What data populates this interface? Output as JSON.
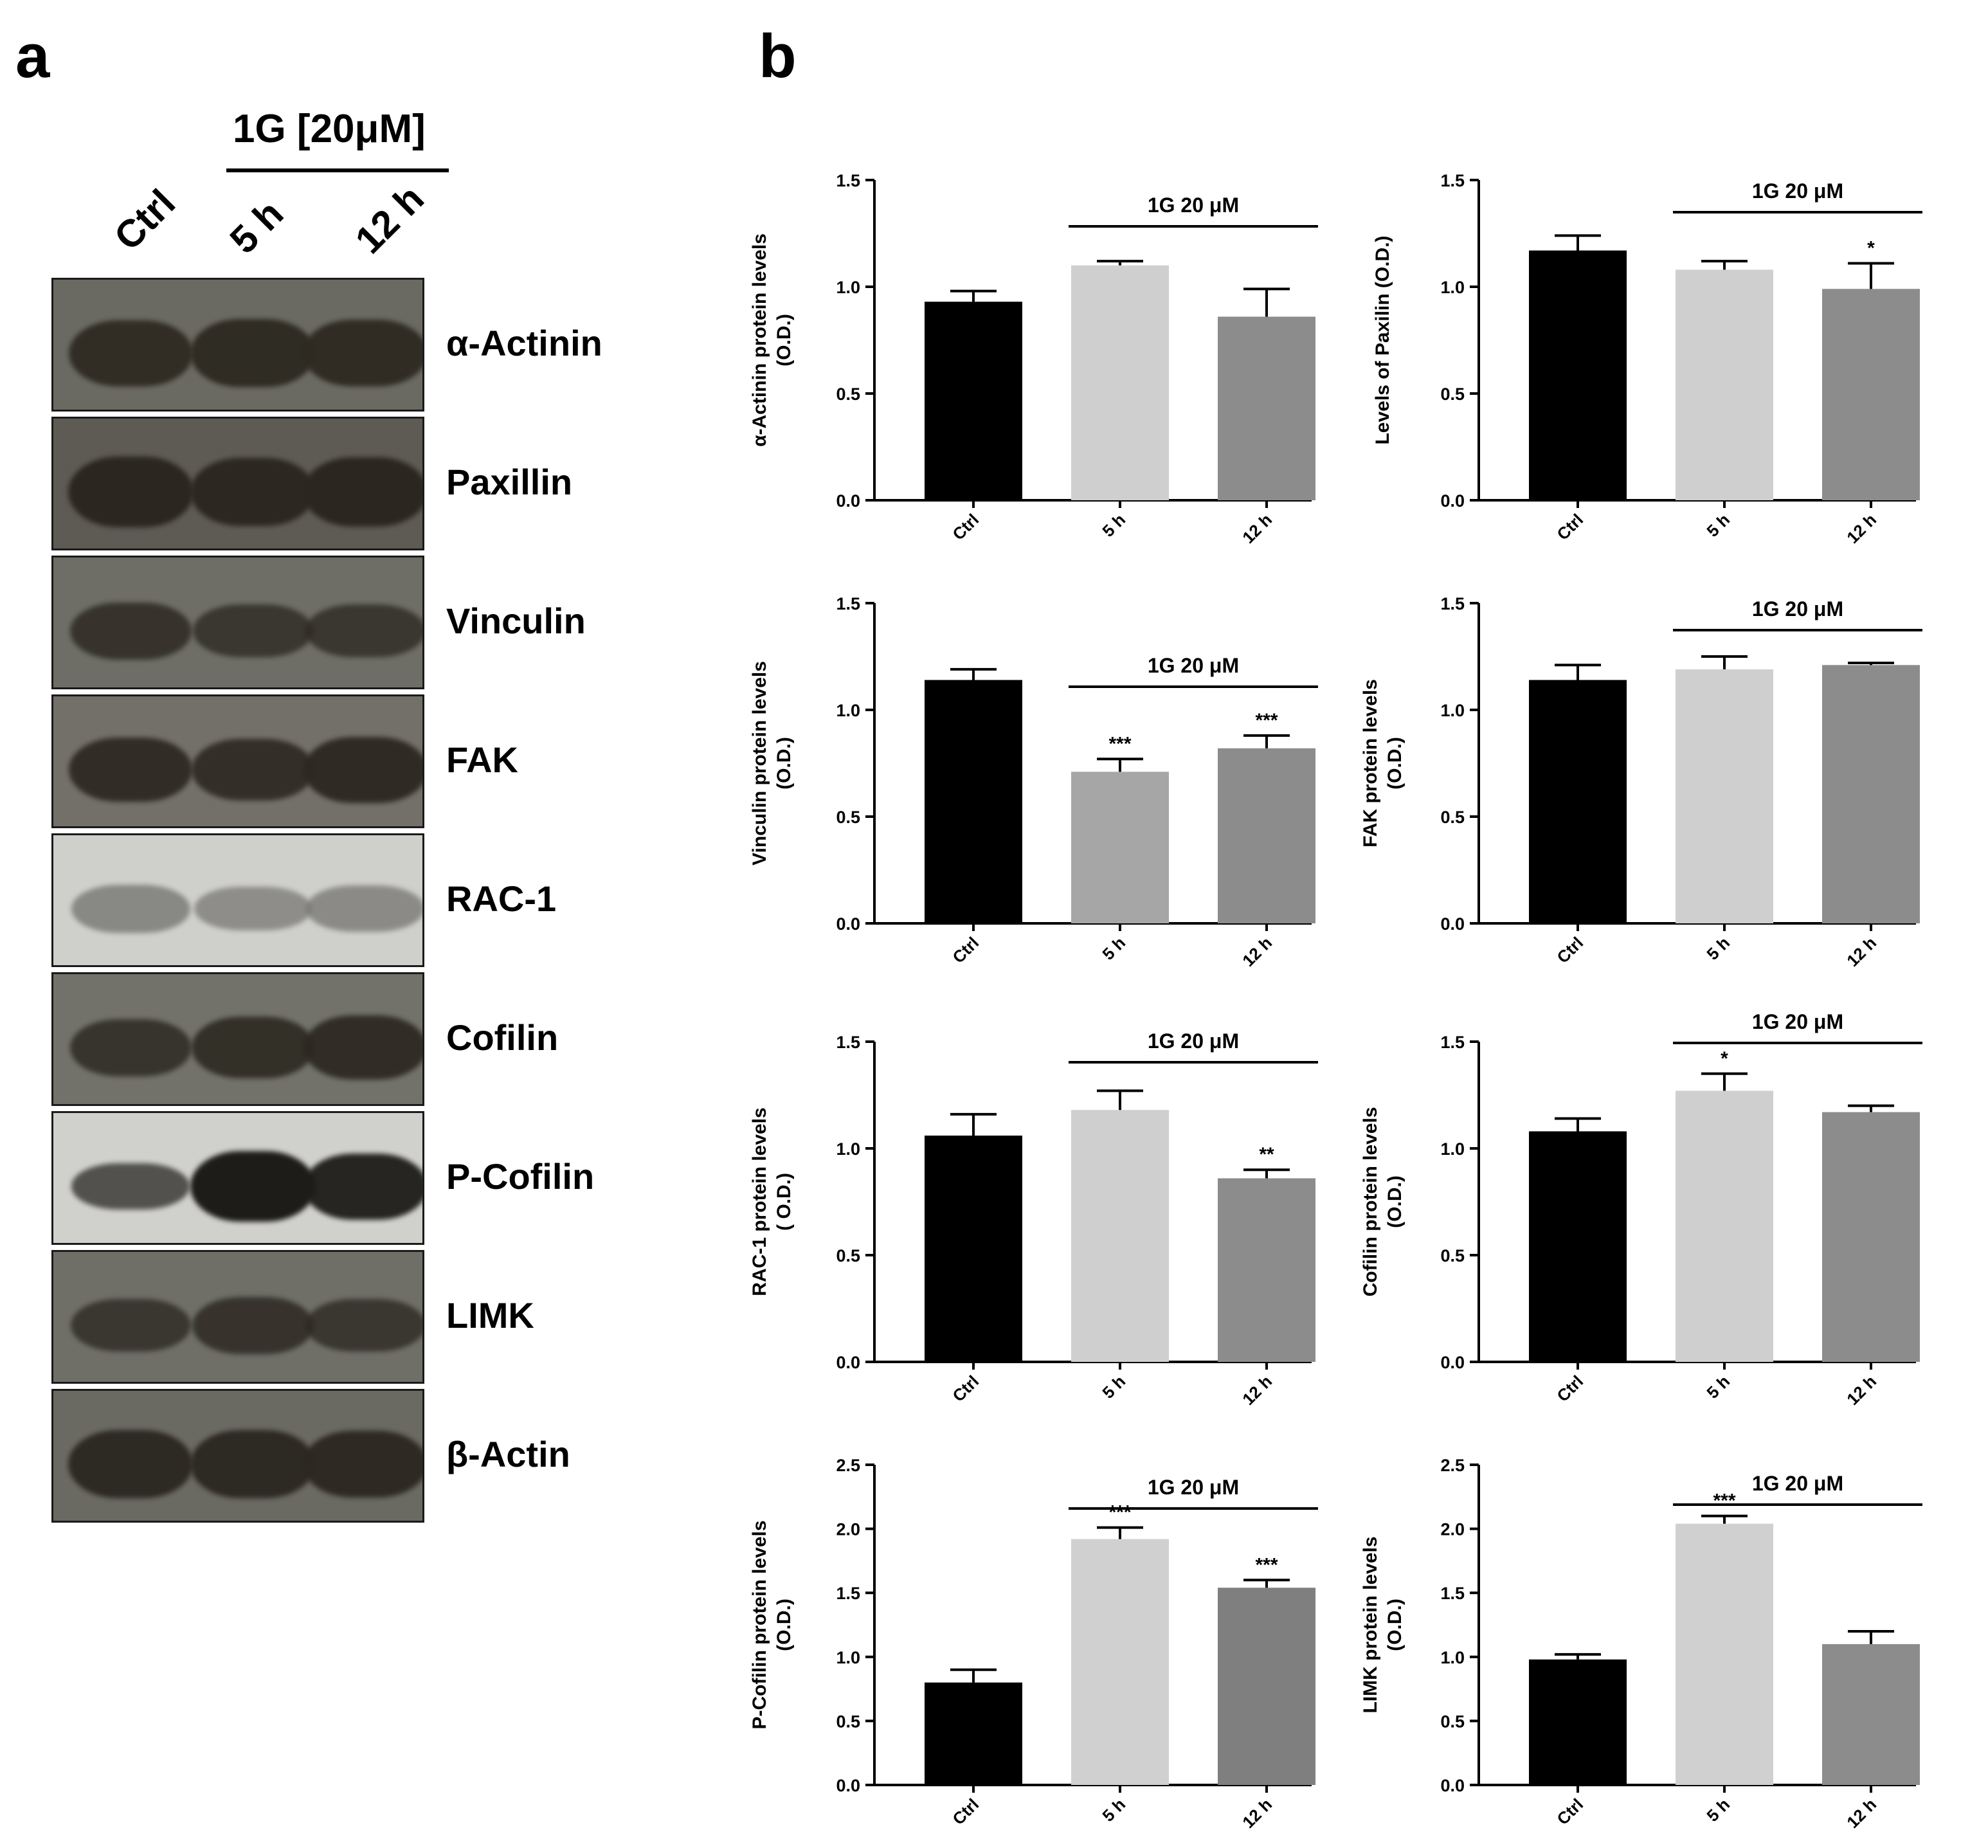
{
  "panels": {
    "a": "a",
    "b": "b"
  },
  "blot": {
    "treatment_header": "1G [20μM]",
    "lanes": [
      "Ctrl",
      "5 h",
      "12 h"
    ],
    "proteins": [
      {
        "name": "α-Actinin",
        "band_intensity": [
          0.9,
          0.95,
          0.92
        ],
        "band_shade": "#2e2a22",
        "background": "#6b6a62"
      },
      {
        "name": "Paxillin",
        "band_intensity": [
          1.0,
          0.95,
          0.98
        ],
        "band_shade": "#2b2720",
        "background": "#5d5b54"
      },
      {
        "name": "Vinculin",
        "band_intensity": [
          0.7,
          0.6,
          0.6
        ],
        "band_shade": "#2c2821",
        "background": "#6e6e66"
      },
      {
        "name": "FAK",
        "band_intensity": [
          0.85,
          0.8,
          0.9
        ],
        "band_shade": "#2c2821",
        "background": "#737069"
      },
      {
        "name": "RAC-1",
        "band_intensity": [
          0.5,
          0.4,
          0.45
        ],
        "band_shade": "#6f6e6a",
        "background": "#cfcfcb"
      },
      {
        "name": "Cofilin",
        "band_intensity": [
          0.7,
          0.8,
          0.85
        ],
        "band_shade": "#2c2821",
        "background": "#72726a"
      },
      {
        "name": "P-Cofilin",
        "band_intensity": [
          0.45,
          1.0,
          0.9
        ],
        "band_shade": "#1e1c18",
        "background": "#d0d0cc"
      },
      {
        "name": "LIMK",
        "band_intensity": [
          0.6,
          0.7,
          0.6
        ],
        "band_shade": "#2c2821",
        "background": "#6f6f68"
      },
      {
        "name": "β-Actin",
        "band_intensity": [
          0.95,
          0.95,
          0.92
        ],
        "band_shade": "#2c2821",
        "background": "#6a6962"
      }
    ]
  },
  "chart_data": [
    {
      "type": "bar",
      "ylabel": [
        "α-Actinin protein levels",
        "(O.D.)"
      ],
      "categories": [
        "Ctrl",
        "5 h",
        "12 h"
      ],
      "values": [
        0.93,
        1.1,
        0.86
      ],
      "errors": [
        0.05,
        0.02,
        0.13
      ],
      "stars": [
        "",
        "",
        ""
      ],
      "ylim": [
        0,
        1.5
      ],
      "yticks": [
        "0.0",
        "0.5",
        "1.0",
        "1.5"
      ],
      "treatment_label": "1G 20 μM",
      "colors": [
        "#000000",
        "#cfcfcf",
        "#8c8c8c"
      ]
    },
    {
      "type": "bar",
      "ylabel": [
        "Levels of Paxilin (O.D.)"
      ],
      "categories": [
        "Ctrl",
        "5 h",
        "12 h"
      ],
      "values": [
        1.17,
        1.08,
        0.99
      ],
      "errors": [
        0.07,
        0.04,
        0.12
      ],
      "stars": [
        "",
        "",
        "*"
      ],
      "ylim": [
        0,
        1.5
      ],
      "yticks": [
        "0.0",
        "0.5",
        "1.0",
        "1.5"
      ],
      "treatment_label": "1G 20 μM",
      "colors": [
        "#000000",
        "#cfcfcf",
        "#8c8c8c"
      ]
    },
    {
      "type": "bar",
      "ylabel": [
        "Vinculin protein levels",
        "(O.D.)"
      ],
      "categories": [
        "Ctrl",
        "5 h",
        "12 h"
      ],
      "values": [
        1.14,
        0.71,
        0.82
      ],
      "errors": [
        0.05,
        0.06,
        0.06
      ],
      "stars": [
        "",
        "***",
        "***"
      ],
      "ylim": [
        0,
        1.5
      ],
      "yticks": [
        "0.0",
        "0.5",
        "1.0",
        "1.5"
      ],
      "treatment_label": "1G 20 μM",
      "colors": [
        "#000000",
        "#a6a6a6",
        "#8c8c8c"
      ]
    },
    {
      "type": "bar",
      "ylabel": [
        "FAK protein levels",
        "(O.D.)"
      ],
      "categories": [
        "Ctrl",
        "5 h",
        "12 h"
      ],
      "values": [
        1.14,
        1.19,
        1.21
      ],
      "errors": [
        0.07,
        0.06,
        0.01
      ],
      "stars": [
        "",
        "",
        ""
      ],
      "ylim": [
        0,
        1.5
      ],
      "yticks": [
        "0.0",
        "0.5",
        "1.0",
        "1.5"
      ],
      "treatment_label": "1G 20 μM",
      "colors": [
        "#000000",
        "#cfcfcf",
        "#8c8c8c"
      ]
    },
    {
      "type": "bar",
      "ylabel": [
        "RAC-1 protein levels",
        "( O.D.)"
      ],
      "categories": [
        "Ctrl",
        "5 h",
        "12 h"
      ],
      "values": [
        1.06,
        1.18,
        0.86
      ],
      "errors": [
        0.1,
        0.09,
        0.04
      ],
      "stars": [
        "",
        "",
        "**"
      ],
      "ylim": [
        0,
        1.5
      ],
      "yticks": [
        "0.0",
        "0.5",
        "1.0",
        "1.5"
      ],
      "treatment_label": "1G 20 μM",
      "colors": [
        "#000000",
        "#cfcfcf",
        "#8c8c8c"
      ]
    },
    {
      "type": "bar",
      "ylabel": [
        "Cofilin protein levels",
        "(O.D.)"
      ],
      "categories": [
        "Ctrl",
        "5 h",
        "12 h"
      ],
      "values": [
        1.08,
        1.27,
        1.17
      ],
      "errors": [
        0.06,
        0.08,
        0.03
      ],
      "stars": [
        "",
        "*",
        ""
      ],
      "ylim": [
        0,
        1.5
      ],
      "yticks": [
        "0.0",
        "0.5",
        "1.0",
        "1.5"
      ],
      "treatment_label": "1G 20 μM",
      "colors": [
        "#000000",
        "#cfcfcf",
        "#8c8c8c"
      ]
    },
    {
      "type": "bar",
      "ylabel": [
        "P-Cofilin protein levels",
        "(O.D.)"
      ],
      "categories": [
        "Ctrl",
        "5 h",
        "12 h"
      ],
      "values": [
        0.8,
        1.92,
        1.54
      ],
      "errors": [
        0.1,
        0.09,
        0.06
      ],
      "stars": [
        "",
        "***",
        "***"
      ],
      "ylim": [
        0,
        2.5
      ],
      "yticks": [
        "0.0",
        "0.5",
        "1.0",
        "1.5",
        "2.0",
        "2.5"
      ],
      "treatment_label": "1G 20 μM",
      "colors": [
        "#000000",
        "#d0d0d0",
        "#7f7f7f"
      ]
    },
    {
      "type": "bar",
      "ylabel": [
        "LIMK protein levels",
        "(O.D.)"
      ],
      "categories": [
        "Ctrl",
        "5 h",
        "12 h"
      ],
      "values": [
        0.98,
        2.04,
        1.1
      ],
      "errors": [
        0.04,
        0.06,
        0.1
      ],
      "stars": [
        "",
        "***",
        ""
      ],
      "ylim": [
        0,
        2.5
      ],
      "yticks": [
        "0.0",
        "0.5",
        "1.0",
        "1.5",
        "2.0",
        "2.5"
      ],
      "treatment_label": "1G 20 μM",
      "colors": [
        "#000000",
        "#d0d0d0",
        "#8c8c8c"
      ]
    }
  ]
}
